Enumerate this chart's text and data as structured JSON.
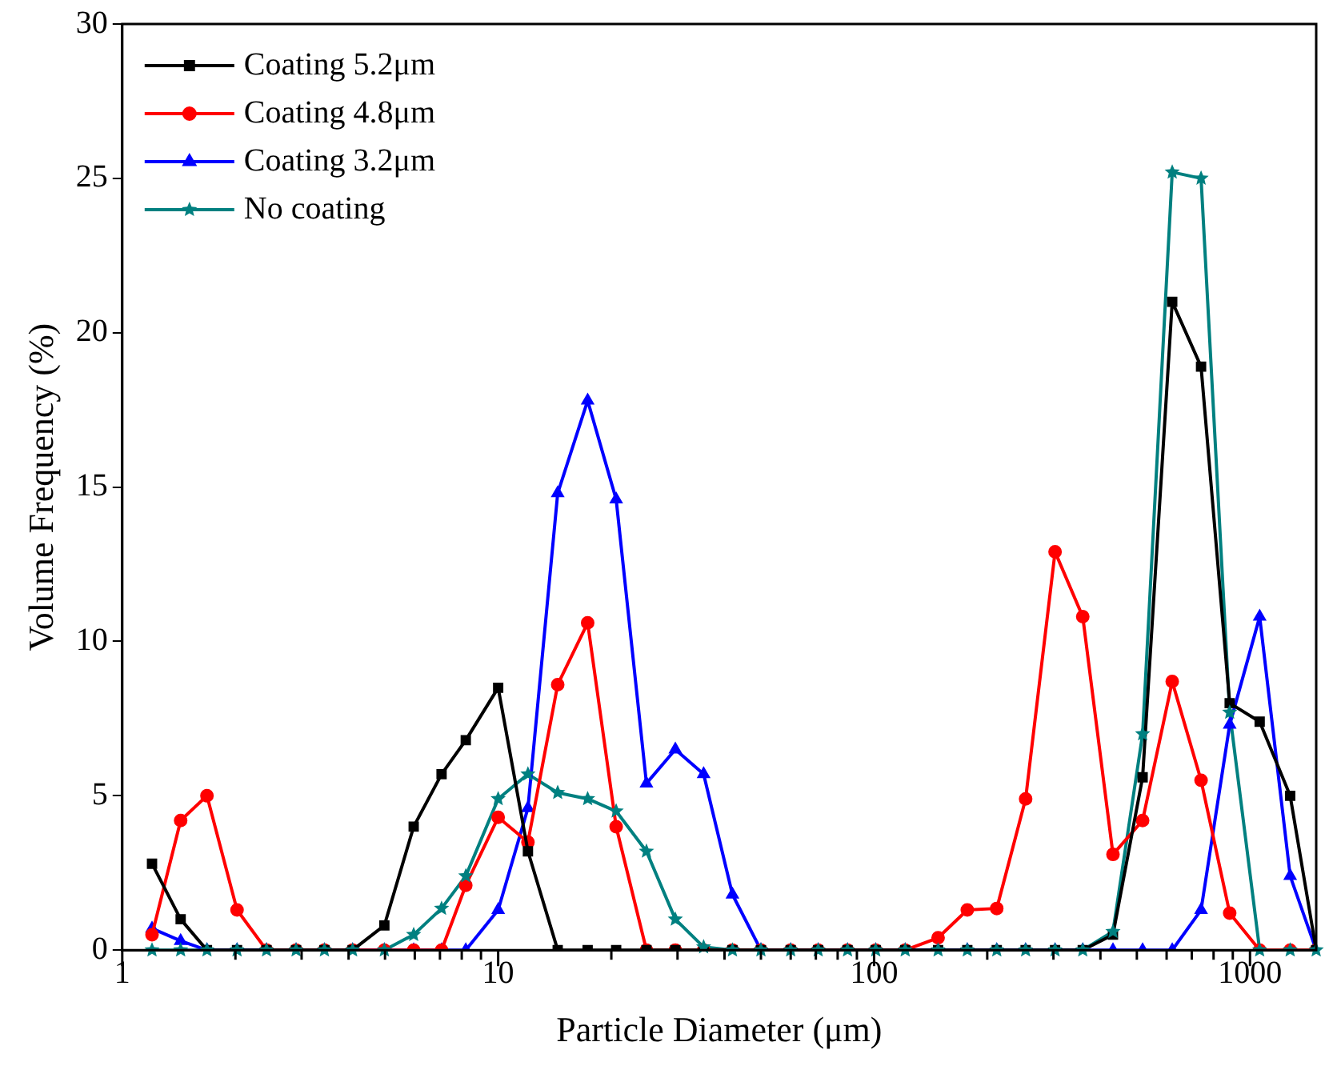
{
  "chart_data": {
    "type": "line",
    "xlabel": "Particle Diameter (μm)",
    "ylabel": "Volume Frequency (%)",
    "x": [
      1.2,
      1.43,
      1.68,
      2.02,
      2.42,
      2.9,
      3.45,
      4.1,
      4.98,
      5.96,
      7.07,
      8.2,
      10.0,
      12.0,
      14.4,
      17.3,
      20.6,
      24.8,
      29.6,
      35.2,
      42,
      50,
      60,
      71,
      85,
      101,
      121,
      148,
      177,
      212,
      253,
      303,
      359,
      432,
      518,
      621,
      741,
      883,
      1061,
      1279,
      1500
    ],
    "series": [
      {
        "name": "Coating 5.2μm",
        "color": "#000000",
        "marker": "square",
        "values": [
          2.8,
          1.0,
          0,
          0,
          0,
          0,
          0,
          0,
          0.8,
          4.0,
          5.7,
          6.8,
          8.5,
          3.2,
          0,
          0,
          0,
          0,
          0,
          0,
          0,
          0,
          0,
          0,
          0,
          0,
          0,
          0,
          0,
          0,
          0,
          0,
          0,
          0.5,
          5.6,
          21.0,
          18.9,
          8.0,
          7.4,
          5.0,
          0
        ]
      },
      {
        "name": "Coating 4.8μm",
        "color": "#ff0000",
        "marker": "circle",
        "values": [
          0.5,
          4.2,
          5.0,
          1.3,
          0,
          0,
          0,
          0,
          0,
          0,
          0,
          2.1,
          4.3,
          3.5,
          8.6,
          10.6,
          4.0,
          0,
          0,
          0,
          0,
          0,
          0,
          0,
          0,
          0,
          0,
          0.4,
          1.3,
          1.35,
          4.9,
          12.9,
          10.8,
          3.1,
          4.2,
          8.7,
          5.5,
          1.2,
          0,
          0,
          0
        ]
      },
      {
        "name": "Coating 3.2μm",
        "color": "#0000ff",
        "marker": "triangle",
        "values": [
          0.7,
          0.3,
          0,
          0,
          0,
          0,
          0,
          0,
          0,
          0,
          0,
          0,
          1.3,
          4.6,
          14.8,
          17.8,
          14.6,
          5.4,
          6.5,
          5.7,
          1.8,
          0,
          0,
          0,
          0,
          0,
          0,
          0,
          0,
          0,
          0,
          0,
          0,
          0,
          0,
          0,
          1.3,
          7.3,
          10.8,
          2.4,
          0
        ]
      },
      {
        "name": "No coating",
        "color": "#008080",
        "marker": "star",
        "values": [
          0,
          0,
          0,
          0,
          0,
          0,
          0,
          0,
          0,
          0.5,
          1.35,
          2.4,
          4.9,
          5.7,
          5.1,
          4.9,
          4.5,
          3.2,
          1.0,
          0.1,
          0,
          0,
          0,
          0,
          0,
          0,
          0,
          0,
          0,
          0,
          0,
          0,
          0,
          0.6,
          7.0,
          25.2,
          25.0,
          7.7,
          0,
          0,
          0
        ]
      }
    ],
    "log": "x",
    "xlim": [
      1,
      1500
    ],
    "xticks": [
      1,
      {
        "value": 2,
        "label": null
      },
      {
        "value": 3,
        "label": null
      },
      {
        "value": 4,
        "label": null
      },
      {
        "value": 5,
        "label": null
      },
      {
        "value": 6,
        "label": null
      },
      {
        "value": 7,
        "label": null
      },
      {
        "value": 8,
        "label": null
      },
      {
        "value": 9,
        "label": null
      },
      10,
      {
        "value": 20,
        "label": null
      },
      {
        "value": 30,
        "label": null
      },
      {
        "value": 40,
        "label": null
      },
      {
        "value": 50,
        "label": null
      },
      {
        "value": 60,
        "label": null
      },
      {
        "value": 70,
        "label": null
      },
      {
        "value": 80,
        "label": null
      },
      {
        "value": 90,
        "label": null
      },
      100,
      {
        "value": 200,
        "label": null
      },
      {
        "value": 300,
        "label": null
      },
      {
        "value": 400,
        "label": null
      },
      {
        "value": 500,
        "label": null
      },
      {
        "value": 600,
        "label": null
      },
      {
        "value": 700,
        "label": null
      },
      {
        "value": 800,
        "label": null
      },
      {
        "value": 900,
        "label": null
      },
      1000
    ],
    "ylim": [
      0,
      30
    ],
    "yticks": [
      0,
      5,
      10,
      15,
      20,
      25,
      30
    ],
    "grid": false,
    "legend": "top left",
    "line_style": "solid"
  }
}
